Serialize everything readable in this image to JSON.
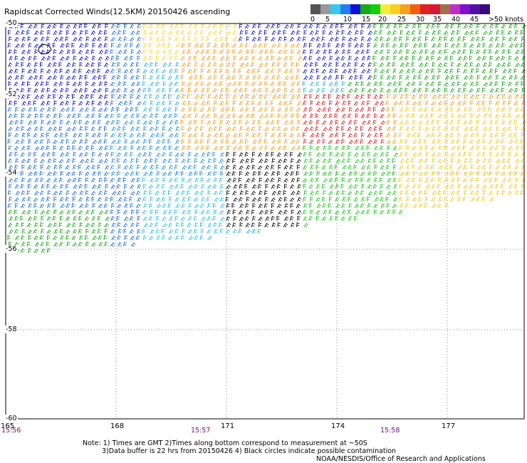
{
  "title": "Rapidscat Corrected Winds(12.5KM) 20150426 ascending",
  "legend": {
    "labels": [
      "0",
      "5",
      "10",
      "15",
      "20",
      "25",
      "30",
      "35",
      "40",
      "45",
      ">50 knots"
    ],
    "colors": [
      "#555555",
      "#999999",
      "#37c7ef",
      "#1f7fef",
      "#1010d8",
      "#18a818",
      "#10d010",
      "#f4ec3a",
      "#f8d020",
      "#f4a020",
      "#f06010",
      "#e02020",
      "#d81838",
      "#a07048",
      "#c030c0",
      "#8010d0",
      "#5010a0",
      "#3a0a80"
    ]
  },
  "axes": {
    "lon_labels": [
      "165",
      "168",
      "171",
      "174",
      "177"
    ],
    "lat_labels": [
      "-50",
      "-52",
      "-54",
      "-56",
      "-58",
      "-60"
    ],
    "time_labels": [
      "15:56",
      "15:57",
      "15:58"
    ]
  },
  "notes": {
    "line1": "Note: 1) Times are GMT 2)Times along bottom correspond to measurement at ~50S",
    "line2": "3)Data buffer is 22 hrs from 20150426 4) Black circles indicate possible contamination",
    "line3": "NOAA/NESDIS/Office of Research and Applications"
  }
}
